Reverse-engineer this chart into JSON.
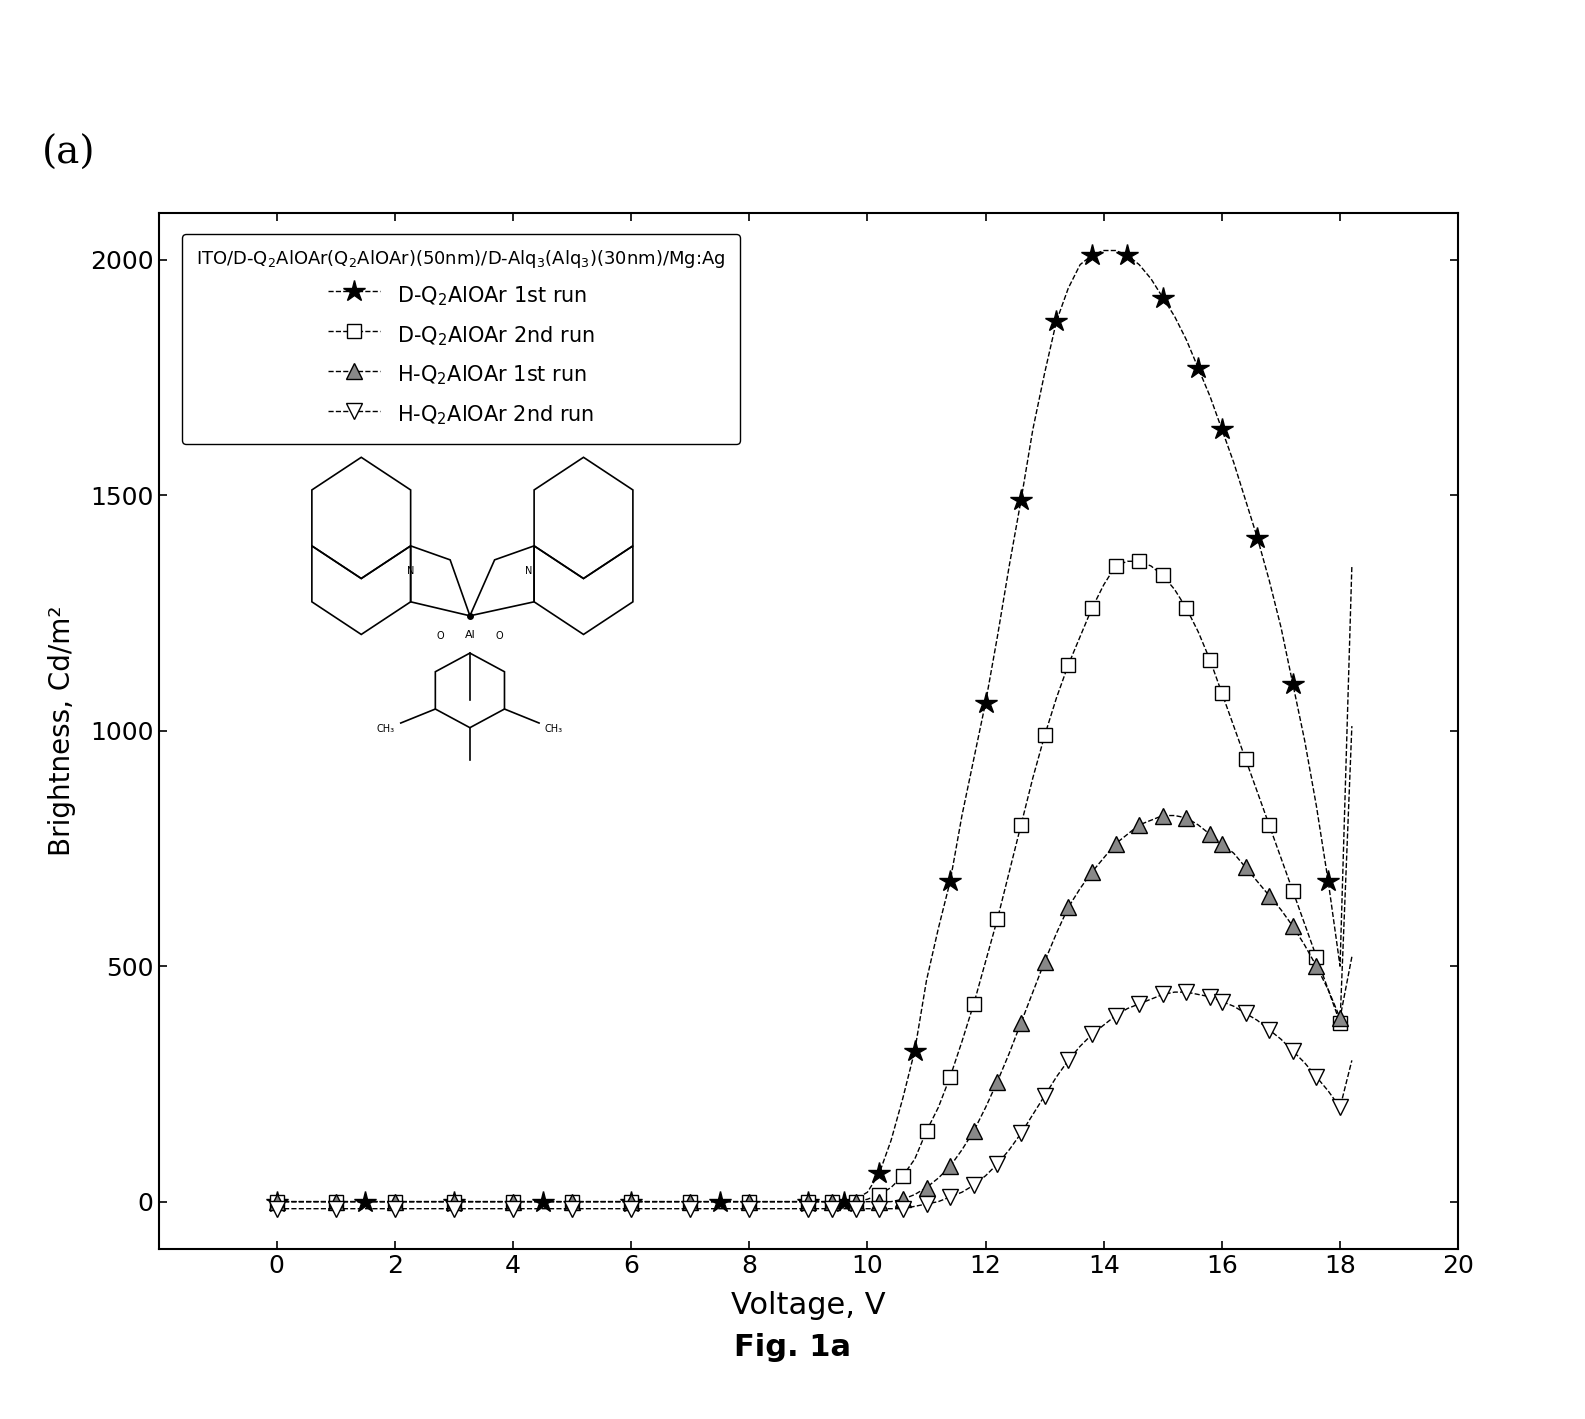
{
  "title_label": "(a)",
  "xlabel": "Voltage, V",
  "ylabel": "Brightness, Cd/m²",
  "xlim": [
    -2,
    20
  ],
  "ylim": [
    -100,
    2100
  ],
  "xticks": [
    0,
    2,
    4,
    6,
    8,
    10,
    12,
    14,
    16,
    18,
    20
  ],
  "yticks": [
    0,
    500,
    1000,
    1500,
    2000
  ],
  "legend_title": "ITO/D-Q₂AlOAr(Q₂AlOAr)(50nm)/D-Alq₃(Alq₃)(30nm)/Mg:Ag",
  "fig_label": "Fig. 1a",
  "D_Q2_1st_fwd_x": [
    0,
    0.5,
    1,
    1.5,
    2,
    2.5,
    3,
    3.5,
    4,
    4.5,
    5,
    5.5,
    6,
    6.5,
    7,
    7.5,
    8,
    8.5,
    9,
    9.2,
    9.4,
    9.6,
    9.8,
    10,
    10.2,
    10.4,
    10.6,
    10.8,
    11,
    11.2,
    11.4,
    11.6,
    11.8,
    12,
    12.2,
    12.4,
    12.6,
    12.8,
    13,
    13.2,
    13.4,
    13.6,
    13.8,
    14,
    14.2,
    14.4,
    14.6,
    14.8,
    15,
    15.2,
    15.4,
    15.6,
    15.8,
    16
  ],
  "D_Q2_1st_fwd_y": [
    0,
    0,
    0,
    0,
    0,
    0,
    0,
    0,
    0,
    0,
    0,
    0,
    0,
    0,
    0,
    0,
    0,
    0,
    0,
    0,
    0,
    0,
    5,
    20,
    60,
    130,
    220,
    320,
    470,
    580,
    680,
    820,
    940,
    1060,
    1200,
    1350,
    1490,
    1640,
    1760,
    1870,
    1940,
    1990,
    2010,
    2020,
    2020,
    2010,
    1990,
    1960,
    1920,
    1880,
    1830,
    1770,
    1710,
    1640
  ],
  "D_Q2_1st_rev_x": [
    16,
    16.2,
    16.4,
    16.6,
    16.8,
    17,
    17.2,
    17.4,
    17.6,
    17.8,
    18,
    18.2
  ],
  "D_Q2_1st_rev_y": [
    1640,
    1570,
    1490,
    1410,
    1320,
    1220,
    1100,
    980,
    840,
    680,
    500,
    1350
  ],
  "D_Q2_2nd_fwd_x": [
    0,
    0.5,
    1,
    1.5,
    2,
    2.5,
    3,
    3.5,
    4,
    4.5,
    5,
    5.5,
    6,
    6.5,
    7,
    7.5,
    8,
    8.5,
    9,
    9.2,
    9.4,
    9.6,
    9.8,
    10,
    10.2,
    10.4,
    10.6,
    10.8,
    11,
    11.2,
    11.4,
    11.6,
    11.8,
    12,
    12.2,
    12.4,
    12.6,
    12.8,
    13,
    13.2,
    13.4,
    13.6,
    13.8,
    14,
    14.2,
    14.4,
    14.6,
    14.8,
    15,
    15.2,
    15.4,
    15.6,
    15.8,
    16
  ],
  "D_Q2_2nd_fwd_y": [
    0,
    0,
    0,
    0,
    0,
    0,
    0,
    0,
    0,
    0,
    0,
    0,
    0,
    0,
    0,
    0,
    0,
    0,
    0,
    0,
    0,
    0,
    0,
    5,
    15,
    30,
    55,
    90,
    150,
    200,
    265,
    340,
    420,
    510,
    600,
    700,
    800,
    900,
    990,
    1070,
    1140,
    1200,
    1260,
    1310,
    1350,
    1360,
    1360,
    1350,
    1330,
    1300,
    1260,
    1210,
    1150,
    1080
  ],
  "D_Q2_2nd_rev_x": [
    16,
    16.2,
    16.4,
    16.6,
    16.8,
    17,
    17.2,
    17.4,
    17.6,
    17.8,
    18,
    18.2
  ],
  "D_Q2_2nd_rev_y": [
    1080,
    1010,
    940,
    870,
    800,
    730,
    660,
    590,
    520,
    450,
    380,
    1010
  ],
  "H_Q2_1st_fwd_x": [
    0,
    0.5,
    1,
    1.5,
    2,
    2.5,
    3,
    3.5,
    4,
    4.5,
    5,
    5.5,
    6,
    6.5,
    7,
    7.5,
    8,
    8.5,
    9,
    9.2,
    9.4,
    9.6,
    9.8,
    10,
    10.2,
    10.4,
    10.6,
    10.8,
    11,
    11.2,
    11.4,
    11.6,
    11.8,
    12,
    12.2,
    12.4,
    12.6,
    12.8,
    13,
    13.2,
    13.4,
    13.6,
    13.8,
    14,
    14.2,
    14.4,
    14.6,
    14.8,
    15,
    15.2,
    15.4,
    15.6,
    15.8,
    16
  ],
  "H_Q2_1st_fwd_y": [
    0,
    0,
    0,
    0,
    0,
    0,
    0,
    0,
    0,
    0,
    0,
    0,
    0,
    0,
    0,
    0,
    0,
    0,
    0,
    0,
    0,
    0,
    0,
    0,
    0,
    0,
    5,
    15,
    30,
    50,
    75,
    110,
    150,
    200,
    255,
    315,
    380,
    445,
    510,
    570,
    625,
    665,
    700,
    730,
    760,
    780,
    800,
    810,
    820,
    820,
    815,
    800,
    780,
    760
  ],
  "H_Q2_1st_rev_x": [
    16,
    16.2,
    16.4,
    16.6,
    16.8,
    17,
    17.2,
    17.4,
    17.6,
    17.8,
    18,
    18.2
  ],
  "H_Q2_1st_rev_y": [
    760,
    740,
    710,
    680,
    650,
    620,
    585,
    545,
    500,
    450,
    390,
    520
  ],
  "H_Q2_2nd_fwd_x": [
    0,
    0.5,
    1,
    1.5,
    2,
    2.5,
    3,
    3.5,
    4,
    4.5,
    5,
    5.5,
    6,
    6.5,
    7,
    7.5,
    8,
    8.5,
    9,
    9.2,
    9.4,
    9.6,
    9.8,
    10,
    10.2,
    10.4,
    10.6,
    10.8,
    11,
    11.2,
    11.4,
    11.6,
    11.8,
    12,
    12.2,
    12.4,
    12.6,
    12.8,
    13,
    13.2,
    13.4,
    13.6,
    13.8,
    14,
    14.2,
    14.4,
    14.6,
    14.8,
    15,
    15.2,
    15.4,
    15.6,
    15.8,
    16
  ],
  "H_Q2_2nd_fwd_y": [
    -15,
    -15,
    -15,
    -15,
    -15,
    -15,
    -15,
    -15,
    -15,
    -15,
    -15,
    -15,
    -15,
    -15,
    -15,
    -15,
    -15,
    -15,
    -15,
    -15,
    -15,
    -15,
    -15,
    -15,
    -15,
    -15,
    -15,
    -10,
    -5,
    0,
    10,
    20,
    35,
    55,
    80,
    110,
    145,
    185,
    225,
    265,
    300,
    330,
    355,
    375,
    395,
    410,
    420,
    430,
    440,
    445,
    445,
    440,
    435,
    425
  ],
  "H_Q2_2nd_rev_x": [
    16,
    16.2,
    16.4,
    16.6,
    16.8,
    17,
    17.2,
    17.4,
    17.6,
    17.8,
    18,
    18.2
  ],
  "H_Q2_2nd_rev_y": [
    425,
    415,
    400,
    385,
    365,
    345,
    320,
    295,
    265,
    235,
    200,
    300
  ]
}
